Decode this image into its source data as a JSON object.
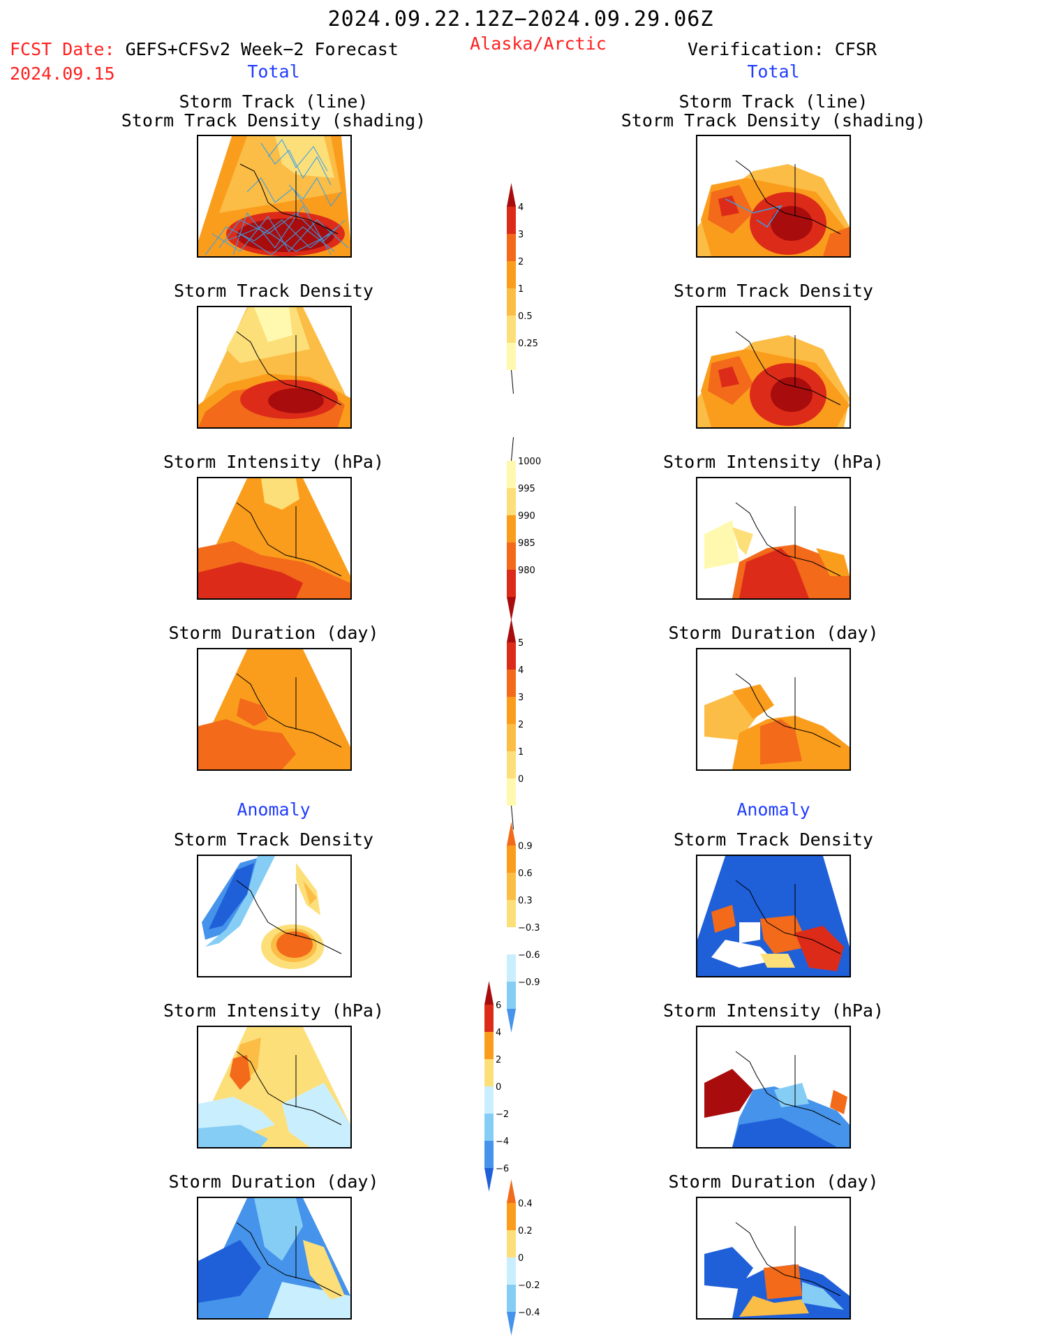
{
  "header": {
    "date_range": "2024.09.22.12Z−2024.09.29.06Z",
    "region": "Alaska/Arctic",
    "fcst_label": "FCST Date:",
    "fcst_product": "GEFS+CFSv2 Week−2 Forecast",
    "fcst_date": "2024.09.15",
    "verification": "Verification: CFSR",
    "section_total": "Total",
    "section_anomaly": "Anomaly"
  },
  "panel_titles": {
    "track_line": "Storm Track (line)",
    "track_shading": "Storm Track Density (shading)",
    "density": "Storm Track Density",
    "intensity": "Storm Intensity (hPa)",
    "duration": "Storm Duration (day)"
  },
  "colors": {
    "c1": "#fff9b0",
    "c2": "#fddf7a",
    "c3": "#fbbd45",
    "c4": "#fb9d1c",
    "c5": "#f26a1a",
    "c6": "#dd2b1a",
    "c7": "#a80c0c",
    "b1": "#1f5fd8",
    "b2": "#4593ea",
    "b3": "#86cdf5",
    "b4": "#c9efff",
    "track": "#3aa0e8"
  },
  "chart_data": [
    {
      "type": "heatmap",
      "title": "Storm Track Density",
      "colorbar": {
        "labels": [
          "4",
          "3",
          "2",
          "1",
          "0.5",
          "0.25"
        ]
      }
    },
    {
      "type": "heatmap",
      "title": "Storm Intensity (hPa)",
      "colorbar": {
        "labels": [
          "1000",
          "995",
          "990",
          "985",
          "980"
        ]
      }
    },
    {
      "type": "heatmap",
      "title": "Storm Duration (day)",
      "colorbar": {
        "labels": [
          "5",
          "4",
          "3",
          "2",
          "1",
          "0"
        ]
      }
    },
    {
      "type": "heatmap",
      "title": "Storm Track Density Anomaly",
      "colorbar": {
        "labels": [
          "0.9",
          "0.6",
          "0.3",
          "−0.3",
          "−0.6",
          "−0.9"
        ]
      }
    },
    {
      "type": "heatmap",
      "title": "Storm Intensity Anomaly (hPa)",
      "colorbar": {
        "labels": [
          "6",
          "4",
          "2",
          "0",
          "−2",
          "−4",
          "−6"
        ]
      }
    },
    {
      "type": "heatmap",
      "title": "Storm Duration Anomaly (day)",
      "colorbar": {
        "labels": [
          "0.4",
          "0.2",
          "0",
          "−0.2",
          "−0.4"
        ]
      }
    }
  ]
}
